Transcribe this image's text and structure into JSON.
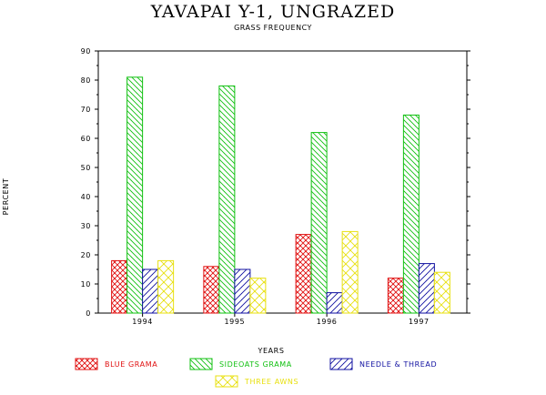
{
  "chart_data": {
    "type": "bar",
    "title": "YAVAPAI Y-1, UNGRAZED",
    "subtitle": "GRASS FREQUENCY",
    "xlabel": "YEARS",
    "ylabel": "PERCENT",
    "ylim": [
      0,
      90
    ],
    "yticks": [
      0,
      10,
      20,
      30,
      40,
      50,
      60,
      70,
      80,
      90
    ],
    "grid": false,
    "legend_position": "bottom",
    "categories": [
      "1994",
      "1995",
      "1996",
      "1997"
    ],
    "series": [
      {
        "name": "BLUE GRAMA",
        "values": [
          18,
          16,
          27,
          12
        ],
        "color": "#e01010",
        "pattern": "crosshatch"
      },
      {
        "name": "SIDEOATS GRAMA",
        "values": [
          81,
          78,
          62,
          68
        ],
        "color": "#10c010",
        "pattern": "diagonal-down"
      },
      {
        "name": "NEEDLE & THREAD",
        "values": [
          15,
          15,
          7,
          17
        ],
        "color": "#1010a0",
        "pattern": "diagonal-up"
      },
      {
        "name": "THREE AWNS",
        "values": [
          18,
          12,
          28,
          14
        ],
        "color": "#e8e010",
        "pattern": "crosshatch-wide"
      }
    ]
  }
}
